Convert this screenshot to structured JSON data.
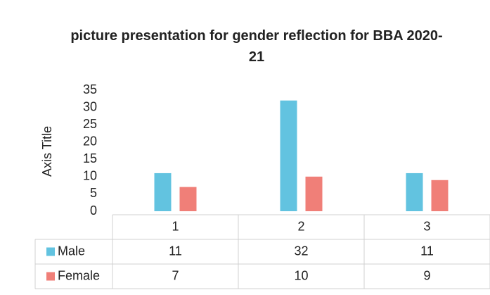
{
  "chart_data": {
    "type": "bar",
    "title": "picture presentation for gender reflection for BBA 2020-21",
    "y_axis_title": "Axis Title",
    "categories": [
      "1",
      "2",
      "3"
    ],
    "series": [
      {
        "name": "Male",
        "color": "#62c3e0",
        "values": [
          11,
          32,
          11
        ]
      },
      {
        "name": "Female",
        "color": "#f07f78",
        "values": [
          7,
          10,
          9
        ]
      }
    ],
    "ylim": [
      0,
      35
    ],
    "yticks": [
      0,
      5,
      10,
      15,
      20,
      25,
      30,
      35
    ],
    "grid": false,
    "data_table": true
  }
}
